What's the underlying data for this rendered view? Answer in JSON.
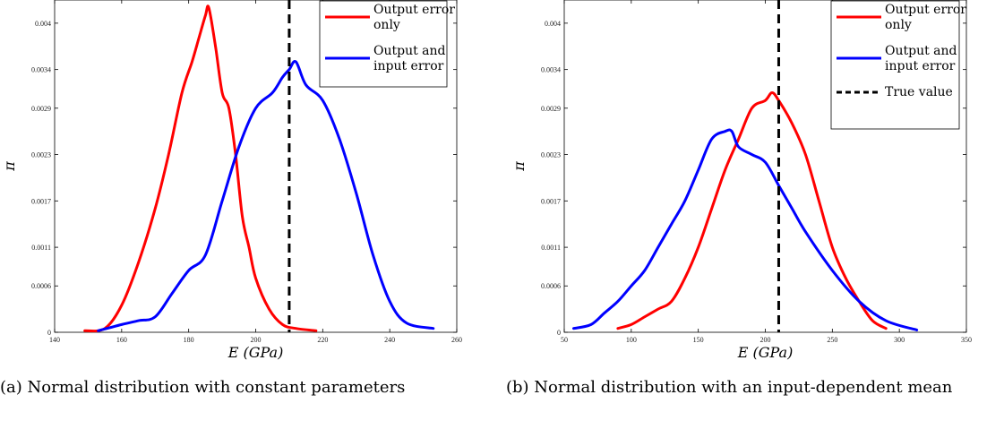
{
  "captions": {
    "a": "(a) Normal distribution with constant parameters",
    "b": "(b) Normal distribution with an input-dependent mean"
  },
  "chart_data": [
    {
      "type": "line",
      "id": "a",
      "title": "",
      "xlabel": "E (GPa)",
      "ylabel": "π",
      "xlim": [
        140,
        260
      ],
      "ylim": [
        0,
        0.0043
      ],
      "xticks": [
        140,
        160,
        180,
        200,
        220,
        240,
        260
      ],
      "yticks": [
        0,
        0.0006,
        0.0011,
        0.0017,
        0.0023,
        0.0029,
        0.0034,
        0.004
      ],
      "grid": false,
      "legend_position": "top-right",
      "vline": {
        "x": 210
      },
      "series": [
        {
          "name": "Output error only",
          "color": "#ff0000",
          "x": [
            149,
            155,
            160,
            165,
            170,
            174,
            178,
            181,
            183,
            185,
            186,
            188,
            190,
            192,
            194,
            196,
            198,
            200,
            204,
            208,
            212,
            218
          ],
          "y": [
            2e-05,
            5e-05,
            0.00035,
            0.0009,
            0.0016,
            0.0023,
            0.0031,
            0.0035,
            0.0038,
            0.0041,
            0.0042,
            0.0037,
            0.0031,
            0.0029,
            0.0023,
            0.0015,
            0.0011,
            0.0007,
            0.0003,
            0.0001,
            5e-05,
            2e-05
          ]
        },
        {
          "name": "Output and input error",
          "color": "#0000ff",
          "x": [
            153,
            160,
            165,
            170,
            175,
            180,
            185,
            190,
            195,
            200,
            205,
            208,
            210,
            212,
            215,
            220,
            225,
            230,
            235,
            240,
            245,
            253
          ],
          "y": [
            2e-05,
            0.0001,
            0.00015,
            0.0002,
            0.0005,
            0.0008,
            0.001,
            0.0017,
            0.0024,
            0.0029,
            0.0031,
            0.0033,
            0.0034,
            0.0035,
            0.0032,
            0.003,
            0.0025,
            0.0018,
            0.001,
            0.0004,
            0.00012,
            5e-05
          ]
        }
      ]
    },
    {
      "type": "line",
      "id": "b",
      "title": "",
      "xlabel": "E (GPa)",
      "ylabel": "π",
      "xlim": [
        50,
        350
      ],
      "ylim": [
        0,
        0.0043
      ],
      "xticks": [
        50,
        100,
        150,
        200,
        250,
        300,
        350
      ],
      "yticks": [
        0,
        0.0006,
        0.0011,
        0.0017,
        0.0023,
        0.0029,
        0.0034,
        0.004
      ],
      "grid": false,
      "legend_position": "top-right",
      "vline": {
        "x": 210,
        "name": "True value"
      },
      "series": [
        {
          "name": "Output error only",
          "color": "#ff0000",
          "x": [
            90,
            100,
            110,
            120,
            130,
            140,
            150,
            160,
            170,
            180,
            190,
            200,
            205,
            210,
            220,
            230,
            240,
            250,
            260,
            270,
            280,
            290
          ],
          "y": [
            5e-05,
            0.0001,
            0.0002,
            0.0003,
            0.0004,
            0.0007,
            0.0011,
            0.0016,
            0.0021,
            0.0025,
            0.0029,
            0.003,
            0.0031,
            0.003,
            0.0027,
            0.0023,
            0.0017,
            0.0011,
            0.0007,
            0.0004,
            0.00015,
            5e-05
          ]
        },
        {
          "name": "Output and input error",
          "color": "#0000ff",
          "x": [
            57,
            70,
            80,
            90,
            100,
            110,
            120,
            130,
            140,
            150,
            160,
            170,
            175,
            180,
            190,
            200,
            210,
            220,
            230,
            250,
            270,
            290,
            313
          ],
          "y": [
            5e-05,
            0.0001,
            0.00025,
            0.0004,
            0.0006,
            0.0008,
            0.0011,
            0.0014,
            0.0017,
            0.0021,
            0.0025,
            0.0026,
            0.0026,
            0.0024,
            0.0023,
            0.0022,
            0.0019,
            0.0016,
            0.0013,
            0.0008,
            0.0004,
            0.00015,
            3e-05
          ]
        }
      ]
    }
  ]
}
